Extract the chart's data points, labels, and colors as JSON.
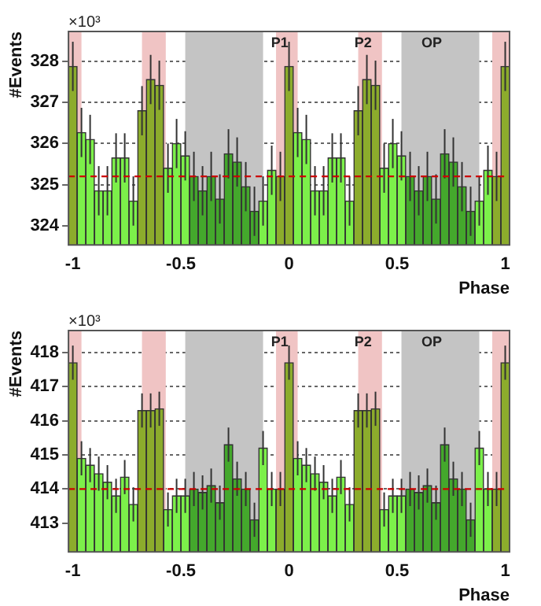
{
  "chart_data": [
    {
      "type": "histogram",
      "xlabel": "Phase",
      "ylabel": "#Events",
      "annotations": [
        "×10³"
      ],
      "bins": [
        -1.02,
        -0.98,
        -0.94,
        -0.9,
        -0.86,
        -0.82,
        -0.78,
        -0.74,
        -0.7,
        -0.66,
        -0.62,
        -0.58,
        -0.54,
        -0.5,
        -0.46,
        -0.42,
        -0.38,
        -0.34,
        -0.3,
        -0.26,
        -0.22,
        -0.18,
        -0.14,
        -0.1,
        -0.06,
        -0.02,
        0.02,
        0.06,
        0.1,
        0.14,
        0.18,
        0.22,
        0.26,
        0.3,
        0.34,
        0.38,
        0.42,
        0.46,
        0.5,
        0.54,
        0.58,
        0.62,
        0.66,
        0.7,
        0.74,
        0.78,
        0.82,
        0.86,
        0.9,
        0.94,
        0.98,
        1.02
      ],
      "values": [
        327.88,
        326.27,
        326.1,
        324.85,
        324.85,
        325.65,
        325.65,
        324.6,
        326.8,
        327.56,
        327.42,
        325.4,
        326.0,
        325.7,
        325.2,
        324.85,
        325.2,
        324.65,
        325.75,
        325.55,
        324.95,
        324.35,
        324.6,
        325.35,
        325.2,
        327.88,
        326.27,
        326.1,
        324.85,
        324.85,
        325.65,
        325.65,
        324.6,
        326.8,
        327.56,
        327.42,
        325.4,
        326.0,
        325.7,
        325.2,
        324.85,
        325.2,
        324.65,
        325.75,
        325.55,
        324.95,
        324.35,
        324.6,
        325.35,
        325.2,
        327.88
      ],
      "errors": [
        0.6,
        0.6,
        0.6,
        0.6,
        0.6,
        0.6,
        0.6,
        0.6,
        0.6,
        0.6,
        0.6,
        0.6,
        0.6,
        0.6,
        0.6,
        0.6,
        0.6,
        0.6,
        0.6,
        0.6,
        0.6,
        0.6,
        0.6,
        0.6,
        0.6,
        0.6,
        0.6,
        0.6,
        0.6,
        0.6,
        0.6,
        0.6,
        0.6,
        0.6,
        0.6,
        0.6,
        0.6,
        0.6,
        0.6,
        0.6,
        0.6,
        0.6,
        0.6,
        0.6,
        0.6,
        0.6,
        0.6,
        0.6,
        0.6,
        0.6,
        0.6
      ],
      "colors": [
        "#8cac2c",
        "#7cf04a",
        "#7cf04a",
        "#7cf04a",
        "#7cf04a",
        "#7cf04a",
        "#7cf04a",
        "#7cf04a",
        "#8cac2c",
        "#8cac2c",
        "#8cac2c",
        "#7cf04a",
        "#7cf04a",
        "#7cf04a",
        "#44a82c",
        "#44a82c",
        "#44a82c",
        "#44a82c",
        "#44a82c",
        "#44a82c",
        "#44a82c",
        "#44a82c",
        "#7cf04a",
        "#7cf04a",
        "#8cac2c",
        "#8cac2c",
        "#7cf04a",
        "#7cf04a",
        "#7cf04a",
        "#7cf04a",
        "#7cf04a",
        "#7cf04a",
        "#7cf04a",
        "#8cac2c",
        "#8cac2c",
        "#8cac2c",
        "#7cf04a",
        "#7cf04a",
        "#7cf04a",
        "#44a82c",
        "#44a82c",
        "#44a82c",
        "#44a82c",
        "#44a82c",
        "#44a82c",
        "#44a82c",
        "#44a82c",
        "#7cf04a",
        "#7cf04a",
        "#8cac2c",
        "#8cac2c"
      ],
      "xlim": [
        -1.02,
        1.02
      ],
      "xticks": [
        -1,
        -0.5,
        0,
        0.5,
        1
      ],
      "ylim": [
        323.53,
        328.73
      ],
      "yticks": [
        324,
        325,
        326,
        327,
        328
      ],
      "grid": "y",
      "ref_lines": [
        {
          "axis": "y",
          "value": 325.2,
          "color": "#cc0000",
          "line_style": "dashed"
        }
      ],
      "bands": [
        {
          "axis": "x",
          "from": -1.02,
          "to": -0.96,
          "color": "#f0c4c4"
        },
        {
          "axis": "x",
          "from": -0.68,
          "to": -0.57,
          "color": "#f0c4c4"
        },
        {
          "axis": "x",
          "from": -0.48,
          "to": -0.12,
          "color": "#c4c4c4"
        },
        {
          "axis": "x",
          "from": -0.06,
          "to": 0.04,
          "color": "#f0c4c4",
          "label": "P1"
        },
        {
          "axis": "x",
          "from": 0.32,
          "to": 0.43,
          "color": "#f0c4c4",
          "label": "P2"
        },
        {
          "axis": "x",
          "from": 0.52,
          "to": 0.88,
          "color": "#c4c4c4",
          "label": "OP"
        },
        {
          "axis": "x",
          "from": 0.94,
          "to": 1.02,
          "color": "#f0c4c4"
        }
      ]
    },
    {
      "type": "histogram",
      "xlabel": "Phase",
      "ylabel": "#Events",
      "annotations": [
        "×10³"
      ],
      "bins": [
        -1.02,
        -0.98,
        -0.94,
        -0.9,
        -0.86,
        -0.82,
        -0.78,
        -0.74,
        -0.7,
        -0.66,
        -0.62,
        -0.58,
        -0.54,
        -0.5,
        -0.46,
        -0.42,
        -0.38,
        -0.34,
        -0.3,
        -0.26,
        -0.22,
        -0.18,
        -0.14,
        -0.1,
        -0.06,
        -0.02,
        0.02,
        0.06,
        0.1,
        0.14,
        0.18,
        0.22,
        0.26,
        0.3,
        0.34,
        0.38,
        0.42,
        0.46,
        0.5,
        0.54,
        0.58,
        0.62,
        0.66,
        0.7,
        0.74,
        0.78,
        0.82,
        0.86,
        0.9,
        0.94,
        0.98,
        1.02
      ],
      "values": [
        417.7,
        414.9,
        414.7,
        414.45,
        414.2,
        413.8,
        414.35,
        413.55,
        416.3,
        416.3,
        416.35,
        413.4,
        413.8,
        413.8,
        414.0,
        413.9,
        414.1,
        413.6,
        415.3,
        414.3,
        414.0,
        413.1,
        415.2,
        414.0,
        414.0,
        417.7,
        414.9,
        414.7,
        414.45,
        414.2,
        413.8,
        414.35,
        413.55,
        416.3,
        416.3,
        416.35,
        413.4,
        413.8,
        413.8,
        414.0,
        413.9,
        414.1,
        413.6,
        415.3,
        414.3,
        414.0,
        413.1,
        415.2,
        414.0,
        414.0,
        417.7
      ],
      "errors": [
        0.5,
        0.5,
        0.5,
        0.5,
        0.5,
        0.5,
        0.5,
        0.5,
        0.5,
        0.5,
        0.5,
        0.5,
        0.5,
        0.5,
        0.5,
        0.5,
        0.5,
        0.5,
        0.5,
        0.5,
        0.5,
        0.5,
        0.5,
        0.5,
        0.5,
        0.5,
        0.5,
        0.5,
        0.5,
        0.5,
        0.5,
        0.5,
        0.5,
        0.5,
        0.5,
        0.5,
        0.5,
        0.5,
        0.5,
        0.5,
        0.5,
        0.5,
        0.5,
        0.5,
        0.5,
        0.5,
        0.5,
        0.5,
        0.5,
        0.5,
        0.5
      ],
      "colors": [
        "#8cac2c",
        "#7cf04a",
        "#7cf04a",
        "#7cf04a",
        "#7cf04a",
        "#7cf04a",
        "#7cf04a",
        "#7cf04a",
        "#8cac2c",
        "#8cac2c",
        "#8cac2c",
        "#7cf04a",
        "#7cf04a",
        "#7cf04a",
        "#44a82c",
        "#44a82c",
        "#44a82c",
        "#44a82c",
        "#44a82c",
        "#44a82c",
        "#44a82c",
        "#44a82c",
        "#7cf04a",
        "#7cf04a",
        "#8cac2c",
        "#8cac2c",
        "#7cf04a",
        "#7cf04a",
        "#7cf04a",
        "#7cf04a",
        "#7cf04a",
        "#7cf04a",
        "#7cf04a",
        "#8cac2c",
        "#8cac2c",
        "#8cac2c",
        "#7cf04a",
        "#7cf04a",
        "#7cf04a",
        "#44a82c",
        "#44a82c",
        "#44a82c",
        "#44a82c",
        "#44a82c",
        "#44a82c",
        "#44a82c",
        "#44a82c",
        "#7cf04a",
        "#7cf04a",
        "#8cac2c",
        "#8cac2c"
      ],
      "xlim": [
        -1.02,
        1.02
      ],
      "xticks": [
        -1,
        -0.5,
        0,
        0.5,
        1
      ],
      "ylim": [
        412.16,
        418.64
      ],
      "yticks": [
        413,
        414,
        415,
        416,
        417,
        418
      ],
      "grid": "y",
      "ref_lines": [
        {
          "axis": "y",
          "value": 414.0,
          "color": "#cc0000",
          "line_style": "dashed"
        }
      ],
      "bands": [
        {
          "axis": "x",
          "from": -1.02,
          "to": -0.96,
          "color": "#f0c4c4"
        },
        {
          "axis": "x",
          "from": -0.68,
          "to": -0.57,
          "color": "#f0c4c4"
        },
        {
          "axis": "x",
          "from": -0.48,
          "to": -0.12,
          "color": "#c4c4c4"
        },
        {
          "axis": "x",
          "from": -0.06,
          "to": 0.04,
          "color": "#f0c4c4",
          "label": "P1"
        },
        {
          "axis": "x",
          "from": 0.32,
          "to": 0.43,
          "color": "#f0c4c4",
          "label": "P2"
        },
        {
          "axis": "x",
          "from": 0.52,
          "to": 0.88,
          "color": "#c4c4c4",
          "label": "OP"
        },
        {
          "axis": "x",
          "from": 0.94,
          "to": 1.02,
          "color": "#f0c4c4"
        }
      ]
    }
  ]
}
